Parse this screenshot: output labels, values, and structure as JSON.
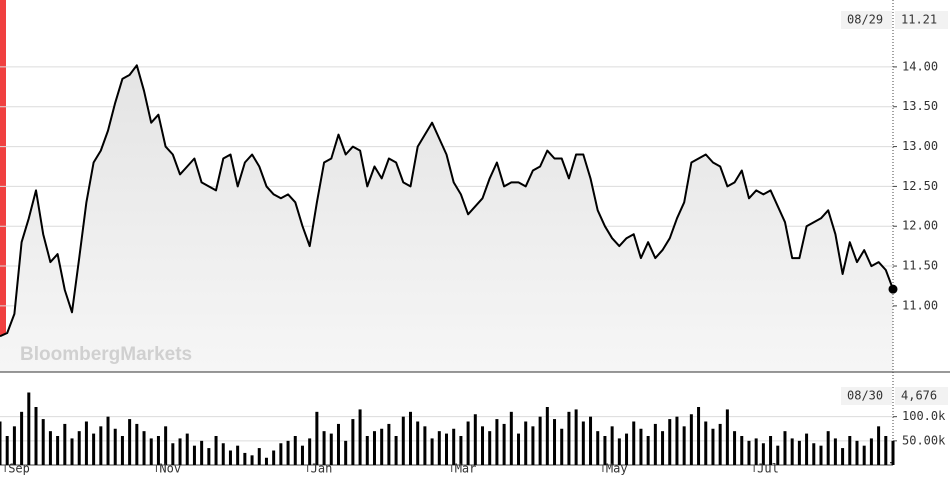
{
  "chart_data": [
    {
      "type": "line",
      "watermark": "BloombergMarkets",
      "color": "#000000",
      "values": [
        10.62,
        10.66,
        10.9,
        11.8,
        12.1,
        12.45,
        11.9,
        11.55,
        11.65,
        11.2,
        10.92,
        11.6,
        12.3,
        12.8,
        12.95,
        13.2,
        13.55,
        13.85,
        13.9,
        14.02,
        13.7,
        13.3,
        13.4,
        13.0,
        12.9,
        12.65,
        12.75,
        12.85,
        12.55,
        12.5,
        12.45,
        12.85,
        12.9,
        12.5,
        12.8,
        12.9,
        12.75,
        12.5,
        12.4,
        12.35,
        12.4,
        12.3,
        12.0,
        11.75,
        12.3,
        12.8,
        12.85,
        13.15,
        12.9,
        13.0,
        12.95,
        12.5,
        12.75,
        12.6,
        12.85,
        12.8,
        12.55,
        12.5,
        13.0,
        13.15,
        13.3,
        13.1,
        12.9,
        12.55,
        12.4,
        12.15,
        12.25,
        12.35,
        12.6,
        12.8,
        12.5,
        12.55,
        12.55,
        12.5,
        12.7,
        12.75,
        12.95,
        12.85,
        12.85,
        12.6,
        12.9,
        12.9,
        12.6,
        12.2,
        12.0,
        11.85,
        11.75,
        11.85,
        11.9,
        11.6,
        11.8,
        11.6,
        11.7,
        11.85,
        12.1,
        12.3,
        12.8,
        12.85,
        12.9,
        12.8,
        12.75,
        12.5,
        12.55,
        12.7,
        12.35,
        12.45,
        12.4,
        12.45,
        12.25,
        12.05,
        11.6,
        11.6,
        12.0,
        12.05,
        12.1,
        12.2,
        11.9,
        11.4,
        11.8,
        11.55,
        11.7,
        11.5,
        11.55,
        11.45,
        11.21
      ],
      "ylim": [
        10.17,
        14.84
      ],
      "yticks": [
        {
          "value": 11,
          "label": "11.00"
        },
        {
          "value": 11.5,
          "label": "11.50"
        },
        {
          "value": 12,
          "label": "12.00"
        },
        {
          "value": 12.5,
          "label": "12.50"
        },
        {
          "value": 13,
          "label": "13.00"
        },
        {
          "value": 13.5,
          "label": "13.50"
        },
        {
          "value": 14,
          "label": "14.00"
        }
      ],
      "grid": true,
      "last": {
        "date": "08/29",
        "value": 11.21,
        "label": "11.21"
      }
    },
    {
      "type": "bar",
      "color": "#000000",
      "categories": [
        null,
        "Sep",
        null,
        null,
        null,
        null,
        null,
        null,
        null,
        null,
        null,
        null,
        null,
        null,
        null,
        null,
        null,
        null,
        null,
        null,
        null,
        null,
        "Nov",
        null,
        null,
        null,
        null,
        null,
        null,
        null,
        null,
        null,
        null,
        null,
        null,
        null,
        null,
        null,
        null,
        null,
        null,
        null,
        null,
        "Jan",
        null,
        null,
        null,
        null,
        null,
        null,
        null,
        null,
        null,
        null,
        null,
        null,
        null,
        null,
        null,
        null,
        null,
        null,
        null,
        "Mar",
        null,
        null,
        null,
        null,
        null,
        null,
        null,
        null,
        null,
        null,
        null,
        null,
        null,
        null,
        null,
        null,
        null,
        null,
        null,
        null,
        "May",
        null,
        null,
        null,
        null,
        null,
        null,
        null,
        null,
        null,
        null,
        null,
        null,
        null,
        null,
        null,
        null,
        null,
        null,
        null,
        null,
        "Jul",
        null,
        null,
        null,
        null,
        null,
        null,
        null,
        null,
        null,
        null,
        null,
        null,
        null,
        null,
        null,
        null,
        null,
        null,
        null
      ],
      "values": [
        90000,
        60000,
        80000,
        110000,
        150000,
        120000,
        95000,
        70000,
        60000,
        85000,
        55000,
        70000,
        90000,
        65000,
        80000,
        100000,
        75000,
        60000,
        95000,
        85000,
        70000,
        55000,
        60000,
        80000,
        45000,
        55000,
        65000,
        40000,
        50000,
        35000,
        60000,
        45000,
        30000,
        40000,
        25000,
        20000,
        35000,
        15000,
        30000,
        45000,
        50000,
        60000,
        40000,
        55000,
        110000,
        70000,
        65000,
        85000,
        50000,
        95000,
        115000,
        60000,
        70000,
        75000,
        85000,
        60000,
        100000,
        110000,
        90000,
        80000,
        55000,
        70000,
        65000,
        75000,
        60000,
        90000,
        105000,
        80000,
        70000,
        95000,
        85000,
        110000,
        65000,
        90000,
        80000,
        100000,
        120000,
        95000,
        75000,
        110000,
        115000,
        90000,
        100000,
        70000,
        60000,
        80000,
        55000,
        65000,
        90000,
        75000,
        60000,
        85000,
        70000,
        95000,
        100000,
        80000,
        105000,
        120000,
        90000,
        75000,
        85000,
        115000,
        70000,
        60000,
        50000,
        55000,
        45000,
        60000,
        40000,
        70000,
        55000,
        50000,
        65000,
        45000,
        40000,
        70000,
        55000,
        35000,
        60000,
        50000,
        40000,
        55000,
        80000,
        60000,
        50000
      ],
      "ylim": [
        0,
        180000
      ],
      "yticks": [
        {
          "value": 50000,
          "label": "50.00k"
        },
        {
          "value": 100000,
          "label": "100.0k"
        }
      ],
      "grid": true,
      "last": {
        "date": "08/30",
        "value": 4676,
        "label": "4,676"
      }
    }
  ]
}
